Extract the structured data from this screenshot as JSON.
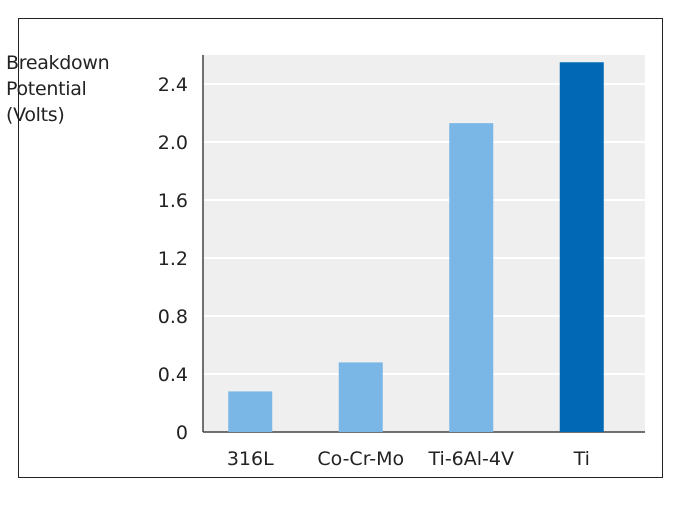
{
  "chart_data": {
    "type": "bar",
    "ylabel_lines": [
      "Breakdown",
      "Potential",
      "(Volts)"
    ],
    "ylabel": "Breakdown Potential (Volts)",
    "xlabel": "",
    "title": "",
    "categories": [
      "316L",
      "Co-Cr-Mo",
      "Ti-6Al-4V",
      "Ti"
    ],
    "values": [
      0.28,
      0.48,
      2.13,
      2.55
    ],
    "y_ticks": [
      "0",
      "0.4",
      "0.8",
      "1.2",
      "1.6",
      "2.0",
      "2.4"
    ],
    "ylim": [
      0,
      2.6
    ],
    "grid": true,
    "colors": {
      "bar": "#7ab7e6",
      "highlight_bar": "#0068b4",
      "plot_bg": "#efefef",
      "grid": "#ffffff"
    },
    "highlight_index": 3
  }
}
